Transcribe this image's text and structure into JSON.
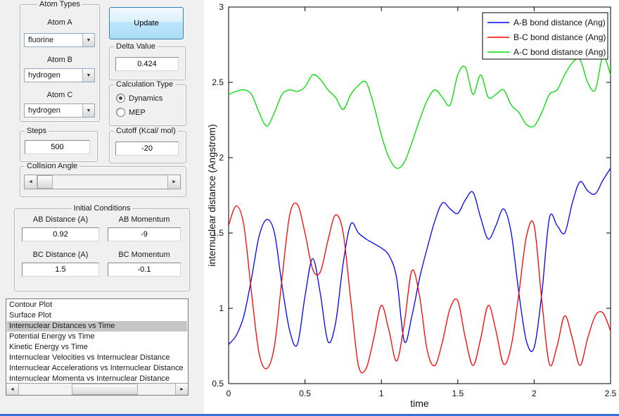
{
  "window": {
    "bg": "#f0f0f0",
    "bottom_border_color": "#3a6fd8",
    "selection_color": "#c6c6c6"
  },
  "panels": {
    "atom_types": {
      "title": "Atom Types",
      "atoms": [
        {
          "label": "Atom A",
          "value": "fluorine"
        },
        {
          "label": "Atom B",
          "value": "hydrogen"
        },
        {
          "label": "Atom C",
          "value": "hydrogen"
        }
      ]
    },
    "update_button": "Update",
    "delta": {
      "title": "Delta Value",
      "value": "0.424"
    },
    "calc_type": {
      "title": "Calculation Type",
      "options": [
        {
          "label": "Dynamics",
          "selected": true
        },
        {
          "label": "MEP",
          "selected": false
        }
      ]
    },
    "steps": {
      "title": "Steps",
      "value": "500"
    },
    "cutoff": {
      "title": "Cutoff (Kcal/ mol)",
      "value": "-20"
    },
    "collision": {
      "title": "Collision Angle"
    },
    "initial_conditions": {
      "title": "Initial Conditions",
      "fields": [
        {
          "label": "AB Distance (A)",
          "value": "0.92"
        },
        {
          "label": "AB Momentum",
          "value": "-9"
        },
        {
          "label": "BC Distance (A)",
          "value": "1.5"
        },
        {
          "label": "BC Momentum",
          "value": "-0.1"
        }
      ]
    },
    "plot_list": {
      "selected_index": 2,
      "items": [
        "Contour Plot",
        "Surface Plot",
        "Internuclear Distances vs Time",
        "Potential Energy vs Time",
        "Kinetic Energy vs Time",
        "Internuclear Velocities vs Internuclear Distance",
        "Internuclear Accelerations vs Internuclear Distance",
        "Internuclear Momenta vs Internuclear Distance"
      ]
    }
  },
  "chart_data": {
    "type": "line",
    "title": "",
    "xlabel": "time",
    "ylabel": "internuclear distance (Angstrom)",
    "xlim": [
      0,
      2.5
    ],
    "ylim": [
      0.5,
      3
    ],
    "xticks": [
      0,
      0.5,
      1,
      1.5,
      2,
      2.5
    ],
    "yticks": [
      0.5,
      1,
      1.5,
      2,
      2.5,
      3
    ],
    "grid": false,
    "legend_position": "top-right",
    "x": [
      0,
      0.05,
      0.1,
      0.15,
      0.2,
      0.25,
      0.3,
      0.35,
      0.4,
      0.45,
      0.5,
      0.55,
      0.6,
      0.65,
      0.7,
      0.75,
      0.8,
      0.85,
      0.9,
      0.95,
      1,
      1.05,
      1.1,
      1.15,
      1.2,
      1.25,
      1.3,
      1.35,
      1.4,
      1.45,
      1.5,
      1.55,
      1.6,
      1.65,
      1.7,
      1.75,
      1.8,
      1.85,
      1.9,
      1.95,
      2,
      2.05,
      2.1,
      2.15,
      2.2,
      2.25,
      2.3,
      2.35,
      2.4,
      2.45,
      2.5
    ],
    "series": [
      {
        "name": "A-B",
        "label": "A-B bond distance (Ang)",
        "color": "#0000ff",
        "values": [
          0.76,
          0.82,
          0.95,
          1.2,
          1.48,
          1.59,
          1.5,
          1.15,
          0.85,
          0.76,
          1.08,
          1.33,
          1.1,
          0.78,
          0.9,
          1.3,
          1.56,
          1.5,
          1.46,
          1.43,
          1.4,
          1.35,
          1.2,
          0.78,
          0.95,
          1.2,
          1.4,
          1.58,
          1.7,
          1.66,
          1.63,
          1.72,
          1.77,
          1.6,
          1.46,
          1.55,
          1.66,
          1.5,
          1.1,
          0.78,
          0.74,
          1.1,
          1.6,
          1.55,
          1.5,
          1.7,
          1.84,
          1.78,
          1.76,
          1.85,
          1.93
        ]
      },
      {
        "name": "B-C",
        "label": "B-C bond distance (Ang)",
        "color": "#ff0000",
        "values": [
          1.55,
          1.68,
          1.55,
          1.1,
          0.7,
          0.6,
          0.75,
          1.2,
          1.62,
          1.69,
          1.5,
          1.26,
          1.24,
          1.45,
          1.62,
          1.5,
          1.05,
          0.62,
          0.6,
          0.8,
          1.02,
          0.85,
          0.65,
          0.9,
          1.25,
          1.08,
          0.72,
          0.62,
          0.78,
          1.0,
          1.05,
          0.8,
          0.62,
          0.8,
          1.02,
          0.85,
          0.63,
          0.75,
          1.1,
          1.48,
          1.55,
          1.05,
          0.63,
          0.75,
          0.95,
          0.8,
          0.62,
          0.8,
          0.95,
          0.97,
          0.85
        ]
      },
      {
        "name": "A-C",
        "label": "A-C bond distance (Ang)",
        "color": "#00dd00",
        "values": [
          2.42,
          2.44,
          2.45,
          2.42,
          2.3,
          2.21,
          2.3,
          2.42,
          2.45,
          2.44,
          2.47,
          2.55,
          2.52,
          2.45,
          2.4,
          2.32,
          2.42,
          2.48,
          2.5,
          2.35,
          2.15,
          2.0,
          1.93,
          1.97,
          2.1,
          2.25,
          2.38,
          2.45,
          2.4,
          2.35,
          2.55,
          2.6,
          2.42,
          2.55,
          2.4,
          2.42,
          2.45,
          2.35,
          2.3,
          2.22,
          2.21,
          2.3,
          2.42,
          2.45,
          2.55,
          2.63,
          2.65,
          2.5,
          2.45,
          2.67,
          2.55
        ]
      }
    ]
  }
}
